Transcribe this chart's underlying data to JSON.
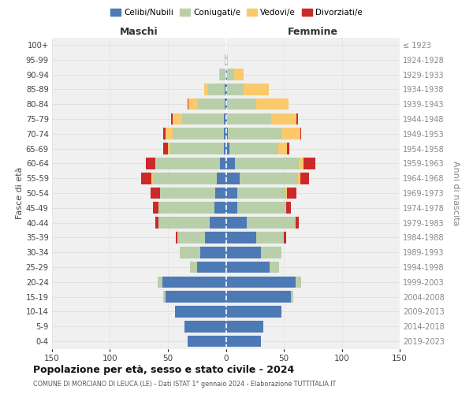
{
  "age_groups": [
    "0-4",
    "5-9",
    "10-14",
    "15-19",
    "20-24",
    "25-29",
    "30-34",
    "35-39",
    "40-44",
    "45-49",
    "50-54",
    "55-59",
    "60-64",
    "65-69",
    "70-74",
    "75-79",
    "80-84",
    "85-89",
    "90-94",
    "95-99",
    "100+"
  ],
  "birth_years": [
    "2019-2023",
    "2014-2018",
    "2009-2013",
    "2004-2008",
    "1999-2003",
    "1994-1998",
    "1989-1993",
    "1984-1988",
    "1979-1983",
    "1974-1978",
    "1969-1973",
    "1964-1968",
    "1959-1963",
    "1954-1958",
    "1949-1953",
    "1944-1948",
    "1939-1943",
    "1934-1938",
    "1929-1933",
    "1924-1928",
    "≤ 1923"
  ],
  "males": {
    "celibi": [
      33,
      36,
      44,
      52,
      55,
      25,
      22,
      18,
      14,
      10,
      9,
      8,
      5,
      2,
      2,
      2,
      1,
      1,
      0,
      0,
      0
    ],
    "coniugati": [
      0,
      0,
      0,
      2,
      4,
      6,
      18,
      24,
      44,
      48,
      48,
      55,
      55,
      46,
      44,
      36,
      23,
      14,
      5,
      1,
      0
    ],
    "vedovi": [
      0,
      0,
      0,
      0,
      0,
      0,
      0,
      0,
      0,
      0,
      0,
      1,
      1,
      2,
      6,
      8,
      8,
      4,
      1,
      0,
      0
    ],
    "divorziati": [
      0,
      0,
      0,
      0,
      0,
      0,
      0,
      1,
      3,
      5,
      8,
      9,
      8,
      4,
      2,
      1,
      1,
      0,
      0,
      0,
      0
    ]
  },
  "females": {
    "nubili": [
      30,
      32,
      48,
      56,
      60,
      38,
      30,
      26,
      18,
      10,
      10,
      12,
      8,
      3,
      2,
      1,
      1,
      1,
      1,
      0,
      0
    ],
    "coniugate": [
      0,
      0,
      0,
      2,
      5,
      8,
      18,
      24,
      42,
      42,
      42,
      50,
      55,
      42,
      46,
      38,
      25,
      14,
      6,
      1,
      0
    ],
    "vedove": [
      0,
      0,
      0,
      0,
      0,
      0,
      0,
      0,
      0,
      0,
      1,
      2,
      4,
      8,
      16,
      22,
      28,
      22,
      8,
      1,
      0
    ],
    "divorziate": [
      0,
      0,
      0,
      0,
      0,
      0,
      0,
      2,
      3,
      4,
      8,
      8,
      10,
      2,
      1,
      1,
      0,
      0,
      0,
      0,
      0
    ]
  },
  "colors": {
    "celibi": "#4d7ab5",
    "coniugati": "#b8cfaa",
    "vedovi": "#fac96a",
    "divorziati": "#cc2929"
  },
  "xlim": 150,
  "title": "Popolazione per età, sesso e stato civile - 2024",
  "subtitle": "COMUNE DI MORCIANO DI LEUCA (LE) - Dati ISTAT 1° gennaio 2024 - Elaborazione TUTTITALIA.IT",
  "ylabel_left": "Fasce di età",
  "ylabel_right": "Anni di nascita",
  "xlabel_left": "Maschi",
  "xlabel_right": "Femmine",
  "bg_color": "#f0f0f0",
  "grid_color": "#dddddd"
}
